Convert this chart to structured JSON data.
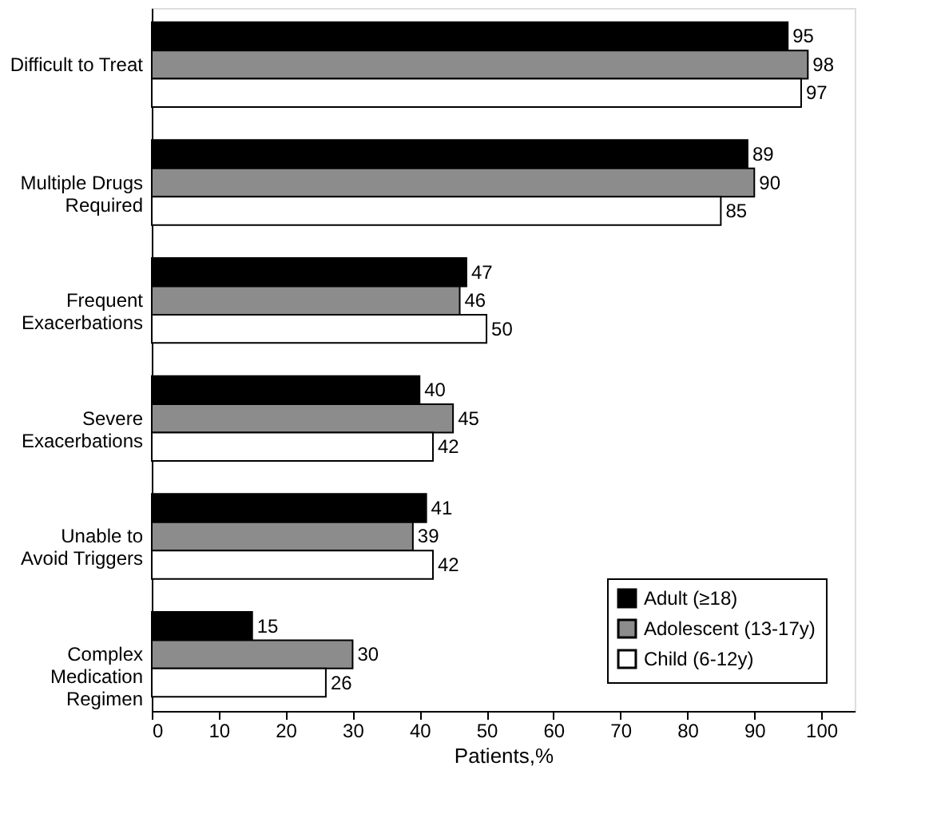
{
  "chart_data": {
    "type": "bar",
    "orientation": "horizontal",
    "xlabel": "Patients,%",
    "categories": [
      "Difficult to Treat",
      "Multiple Drugs\nRequired",
      "Frequent\nExacerbations",
      "Severe\nExacerbations",
      "Unable to\nAvoid Triggers",
      "Complex\nMedication\nRegimen"
    ],
    "series": [
      {
        "name": "Adult (≥18)",
        "color": "#000000",
        "values": [
          95,
          89,
          47,
          40,
          41,
          15
        ]
      },
      {
        "name": "Adolescent (13-17y)",
        "color": "#8c8c8c",
        "values": [
          98,
          90,
          46,
          45,
          39,
          30
        ]
      },
      {
        "name": "Child (6-12y)",
        "color": "#ffffff",
        "values": [
          97,
          85,
          50,
          42,
          42,
          26
        ]
      }
    ],
    "xlim": [
      0,
      105
    ],
    "xticks": [
      0,
      10,
      20,
      30,
      40,
      50,
      60,
      70,
      80,
      90,
      100
    ],
    "data_labels": true,
    "legend": "bottom right",
    "grid": false
  }
}
